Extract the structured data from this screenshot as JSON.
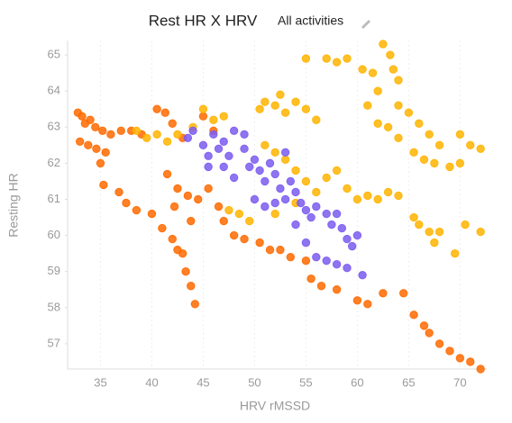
{
  "chart_data": {
    "type": "scatter",
    "title": "Rest HR X HRV",
    "subtitle": "All activities",
    "x_label": "HRV rMSSD",
    "y_label": "Resting HR",
    "xlim": [
      31.8,
      72.6
    ],
    "ylim": [
      56.3,
      65.4
    ],
    "xticks": [
      35,
      40,
      45,
      50,
      55,
      60,
      65,
      70
    ],
    "yticks": [
      57,
      58,
      59,
      60,
      61,
      62,
      63,
      64,
      65
    ],
    "grid": true,
    "series": [
      {
        "color": "#ff6a00",
        "x": [
          32.8,
          33.2,
          33.5,
          34,
          34.5,
          35.2,
          33,
          33.8,
          34.6,
          35.5,
          36,
          37,
          38,
          39,
          40.5,
          41.3,
          42,
          43,
          35,
          35.3,
          36.8,
          37.5,
          38.5,
          40,
          41,
          42,
          42.5,
          43,
          43.3,
          43.8,
          44.2,
          41.5,
          42.5,
          43.5,
          44.5,
          45.5,
          46.5,
          47,
          48,
          49,
          50.5,
          51.5,
          52.5,
          53.5,
          55,
          55.5,
          56.5,
          58,
          60,
          61,
          62.5,
          64.5,
          65.5,
          66.5,
          67,
          68,
          69,
          70,
          71,
          72,
          45,
          46,
          43.8,
          42.2
        ],
        "values": [
          63.4,
          63.3,
          63.1,
          63.2,
          63.0,
          62.9,
          62.6,
          62.5,
          62.4,
          62.3,
          62.8,
          62.9,
          62.9,
          62.8,
          63.5,
          63.4,
          63.1,
          62.7,
          62.0,
          61.4,
          61.2,
          60.9,
          60.7,
          60.6,
          60.2,
          59.9,
          59.6,
          59.5,
          59.0,
          58.6,
          58.1,
          61.7,
          61.3,
          61.1,
          61.0,
          61.3,
          60.8,
          60.4,
          60.0,
          59.9,
          59.8,
          59.6,
          59.6,
          59.4,
          59.3,
          58.8,
          58.6,
          58.5,
          58.2,
          58.1,
          58.4,
          58.4,
          57.8,
          57.5,
          57.3,
          57.0,
          56.8,
          56.6,
          56.5,
          56.3,
          63.3,
          62.9,
          60.4,
          60.8
        ]
      },
      {
        "color": "#ffb400",
        "x": [
          38.5,
          39.5,
          40.5,
          41.5,
          42.5,
          44,
          45,
          46,
          47,
          47.5,
          48.5,
          49.5,
          50.5,
          51,
          52,
          52.5,
          53,
          54,
          55,
          56,
          55,
          57,
          58,
          59,
          60.5,
          61.5,
          62.5,
          63.2,
          63.5,
          64,
          62,
          61,
          62,
          63,
          64,
          65,
          66,
          67,
          68,
          70,
          71,
          64,
          65.5,
          66.5,
          67.5,
          69,
          70,
          72,
          51,
          52,
          53,
          54,
          55,
          56,
          57,
          58,
          59,
          60,
          61,
          62,
          63,
          64,
          65.5,
          66,
          67,
          67.5,
          68,
          69.5,
          70.5,
          72,
          52,
          54
        ],
        "values": [
          62.9,
          62.7,
          62.8,
          62.6,
          62.8,
          63.0,
          63.5,
          63.2,
          63.3,
          60.7,
          60.6,
          60.4,
          63.5,
          63.7,
          63.6,
          63.9,
          63.4,
          63.7,
          63.5,
          63.2,
          64.9,
          64.9,
          64.8,
          64.9,
          64.6,
          64.5,
          65.3,
          65.0,
          64.6,
          64.3,
          64.0,
          63.6,
          63.1,
          63.0,
          63.6,
          63.4,
          63.1,
          62.8,
          62.5,
          62.8,
          62.5,
          62.7,
          62.3,
          62.1,
          62.0,
          61.9,
          62.0,
          62.4,
          62.5,
          62.3,
          62.1,
          61.8,
          61.5,
          61.2,
          61.6,
          61.8,
          61.3,
          61.0,
          61.1,
          61.0,
          61.2,
          61.1,
          60.5,
          60.3,
          60.1,
          59.8,
          60.1,
          59.5,
          60.3,
          60.1,
          60.6,
          60.9
        ]
      },
      {
        "color": "#7b5cf0",
        "x": [
          43.5,
          44,
          45,
          45.5,
          46,
          47,
          47.5,
          48,
          49,
          49.5,
          50,
          50.5,
          51,
          51.5,
          52,
          52.5,
          53,
          53.5,
          54,
          54.5,
          55,
          55.5,
          56,
          57,
          57.5,
          58,
          58.5,
          59,
          59.5,
          60,
          56,
          57,
          58,
          59,
          50,
          51,
          52,
          48,
          47,
          45.5,
          46.5,
          53,
          49,
          54,
          60.5,
          55
        ],
        "values": [
          62.7,
          62.9,
          62.5,
          62.2,
          62.8,
          62.6,
          62.2,
          62.9,
          62.4,
          61.9,
          62.1,
          61.8,
          61.5,
          62.0,
          61.7,
          61.3,
          61.0,
          61.5,
          61.2,
          60.9,
          60.7,
          60.5,
          60.8,
          60.6,
          60.3,
          60.6,
          60.2,
          59.9,
          59.7,
          60.0,
          59.4,
          59.3,
          59.2,
          59.1,
          61.0,
          60.8,
          60.9,
          61.6,
          61.9,
          61.9,
          62.4,
          62.3,
          62.8,
          60.3,
          58.9,
          59.8
        ]
      }
    ]
  }
}
